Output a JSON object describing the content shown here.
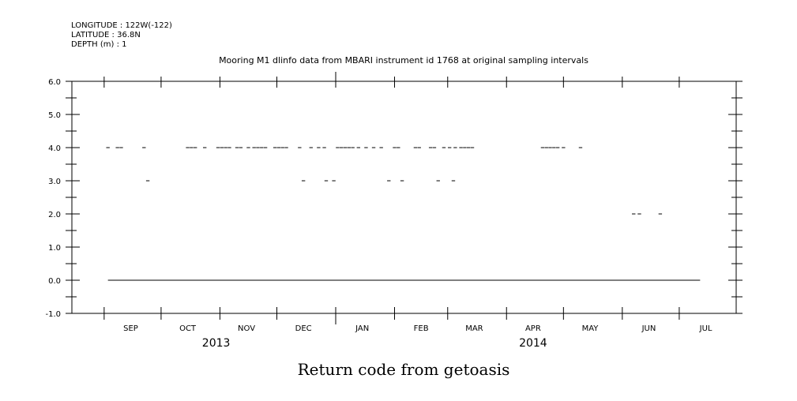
{
  "header": {
    "longitude": "LONGITUDE : 122W(-122)",
    "latitude": "LATITUDE : 36.8N",
    "depth": "DEPTH (m) : 1"
  },
  "chart_data": {
    "type": "scatter",
    "title": "Mooring M1 dlinfo data from MBARI instrument id 1768 at original sampling intervals",
    "xlabel": "Return code from getoasis",
    "ylabel": "",
    "x_range": [
      "2013-08-15",
      "2014-07-31"
    ],
    "ylim": [
      -1.0,
      6.0
    ],
    "yticks": [
      "-1.0",
      "0.0",
      "1.0",
      "2.0",
      "3.0",
      "4.0",
      "5.0",
      "6.0"
    ],
    "months": [
      {
        "label": "SEP",
        "date": "2013-09-15"
      },
      {
        "label": "OCT",
        "date": "2013-10-15"
      },
      {
        "label": "NOV",
        "date": "2013-11-15"
      },
      {
        "label": "DEC",
        "date": "2013-12-15"
      },
      {
        "label": "JAN",
        "date": "2014-01-15"
      },
      {
        "label": "FEB",
        "date": "2014-02-15"
      },
      {
        "label": "MAR",
        "date": "2014-03-15"
      },
      {
        "label": "APR",
        "date": "2014-04-15"
      },
      {
        "label": "MAY",
        "date": "2014-05-15"
      },
      {
        "label": "JUN",
        "date": "2014-06-15"
      },
      {
        "label": "JUL",
        "date": "2014-07-15"
      }
    ],
    "years": [
      {
        "label": "2013",
        "date": "2013-10-30"
      },
      {
        "label": "2014",
        "date": "2014-04-15"
      }
    ],
    "grid": false,
    "series": [
      {
        "style": "line",
        "x": [
          "2013-09-03",
          "2014-07-12"
        ],
        "y": [
          0.0,
          0.0
        ]
      },
      {
        "style": "dash",
        "points": [
          {
            "x": "2013-09-03",
            "y": 4.0
          },
          {
            "x": "2013-09-08",
            "y": 4.0
          },
          {
            "x": "2013-09-10",
            "y": 4.0
          },
          {
            "x": "2013-09-22",
            "y": 4.0
          },
          {
            "x": "2013-09-24",
            "y": 3.0
          },
          {
            "x": "2013-10-15",
            "y": 4.0
          },
          {
            "x": "2013-10-17",
            "y": 4.0
          },
          {
            "x": "2013-10-19",
            "y": 4.0
          },
          {
            "x": "2013-10-24",
            "y": 4.0
          },
          {
            "x": "2013-10-31",
            "y": 4.0
          },
          {
            "x": "2013-11-02",
            "y": 4.0
          },
          {
            "x": "2013-11-04",
            "y": 4.0
          },
          {
            "x": "2013-11-06",
            "y": 4.0
          },
          {
            "x": "2013-11-10",
            "y": 4.0
          },
          {
            "x": "2013-11-12",
            "y": 4.0
          },
          {
            "x": "2013-11-16",
            "y": 4.0
          },
          {
            "x": "2013-11-19",
            "y": 4.0
          },
          {
            "x": "2013-11-21",
            "y": 4.0
          },
          {
            "x": "2013-11-23",
            "y": 4.0
          },
          {
            "x": "2013-11-25",
            "y": 4.0
          },
          {
            "x": "2013-11-30",
            "y": 4.0
          },
          {
            "x": "2013-12-02",
            "y": 4.0
          },
          {
            "x": "2013-12-04",
            "y": 4.0
          },
          {
            "x": "2013-12-06",
            "y": 4.0
          },
          {
            "x": "2013-12-13",
            "y": 4.0
          },
          {
            "x": "2013-12-15",
            "y": 3.0
          },
          {
            "x": "2013-12-19",
            "y": 4.0
          },
          {
            "x": "2013-12-23",
            "y": 4.0
          },
          {
            "x": "2013-12-26",
            "y": 4.0
          },
          {
            "x": "2013-12-27",
            "y": 3.0
          },
          {
            "x": "2013-12-31",
            "y": 3.0
          },
          {
            "x": "2014-01-02",
            "y": 4.0
          },
          {
            "x": "2014-01-04",
            "y": 4.0
          },
          {
            "x": "2014-01-06",
            "y": 4.0
          },
          {
            "x": "2014-01-08",
            "y": 4.0
          },
          {
            "x": "2014-01-10",
            "y": 4.0
          },
          {
            "x": "2014-01-13",
            "y": 4.0
          },
          {
            "x": "2014-01-17",
            "y": 4.0
          },
          {
            "x": "2014-01-21",
            "y": 4.0
          },
          {
            "x": "2014-01-25",
            "y": 4.0
          },
          {
            "x": "2014-01-29",
            "y": 3.0
          },
          {
            "x": "2014-02-01",
            "y": 4.0
          },
          {
            "x": "2014-02-03",
            "y": 4.0
          },
          {
            "x": "2014-02-05",
            "y": 3.0
          },
          {
            "x": "2014-02-12",
            "y": 4.0
          },
          {
            "x": "2014-02-14",
            "y": 4.0
          },
          {
            "x": "2014-02-20",
            "y": 4.0
          },
          {
            "x": "2014-02-22",
            "y": 4.0
          },
          {
            "x": "2014-02-24",
            "y": 3.0
          },
          {
            "x": "2014-02-27",
            "y": 4.0
          },
          {
            "x": "2014-03-02",
            "y": 4.0
          },
          {
            "x": "2014-03-04",
            "y": 3.0
          },
          {
            "x": "2014-03-05",
            "y": 4.0
          },
          {
            "x": "2014-03-08",
            "y": 4.0
          },
          {
            "x": "2014-03-10",
            "y": 4.0
          },
          {
            "x": "2014-03-12",
            "y": 4.0
          },
          {
            "x": "2014-03-14",
            "y": 4.0
          },
          {
            "x": "2014-04-20",
            "y": 4.0
          },
          {
            "x": "2014-04-22",
            "y": 4.0
          },
          {
            "x": "2014-04-24",
            "y": 4.0
          },
          {
            "x": "2014-04-26",
            "y": 4.0
          },
          {
            "x": "2014-04-28",
            "y": 4.0
          },
          {
            "x": "2014-05-01",
            "y": 4.0
          },
          {
            "x": "2014-05-10",
            "y": 4.0
          },
          {
            "x": "2014-06-07",
            "y": 2.0
          },
          {
            "x": "2014-06-10",
            "y": 2.0
          },
          {
            "x": "2014-06-21",
            "y": 2.0
          }
        ]
      }
    ]
  }
}
